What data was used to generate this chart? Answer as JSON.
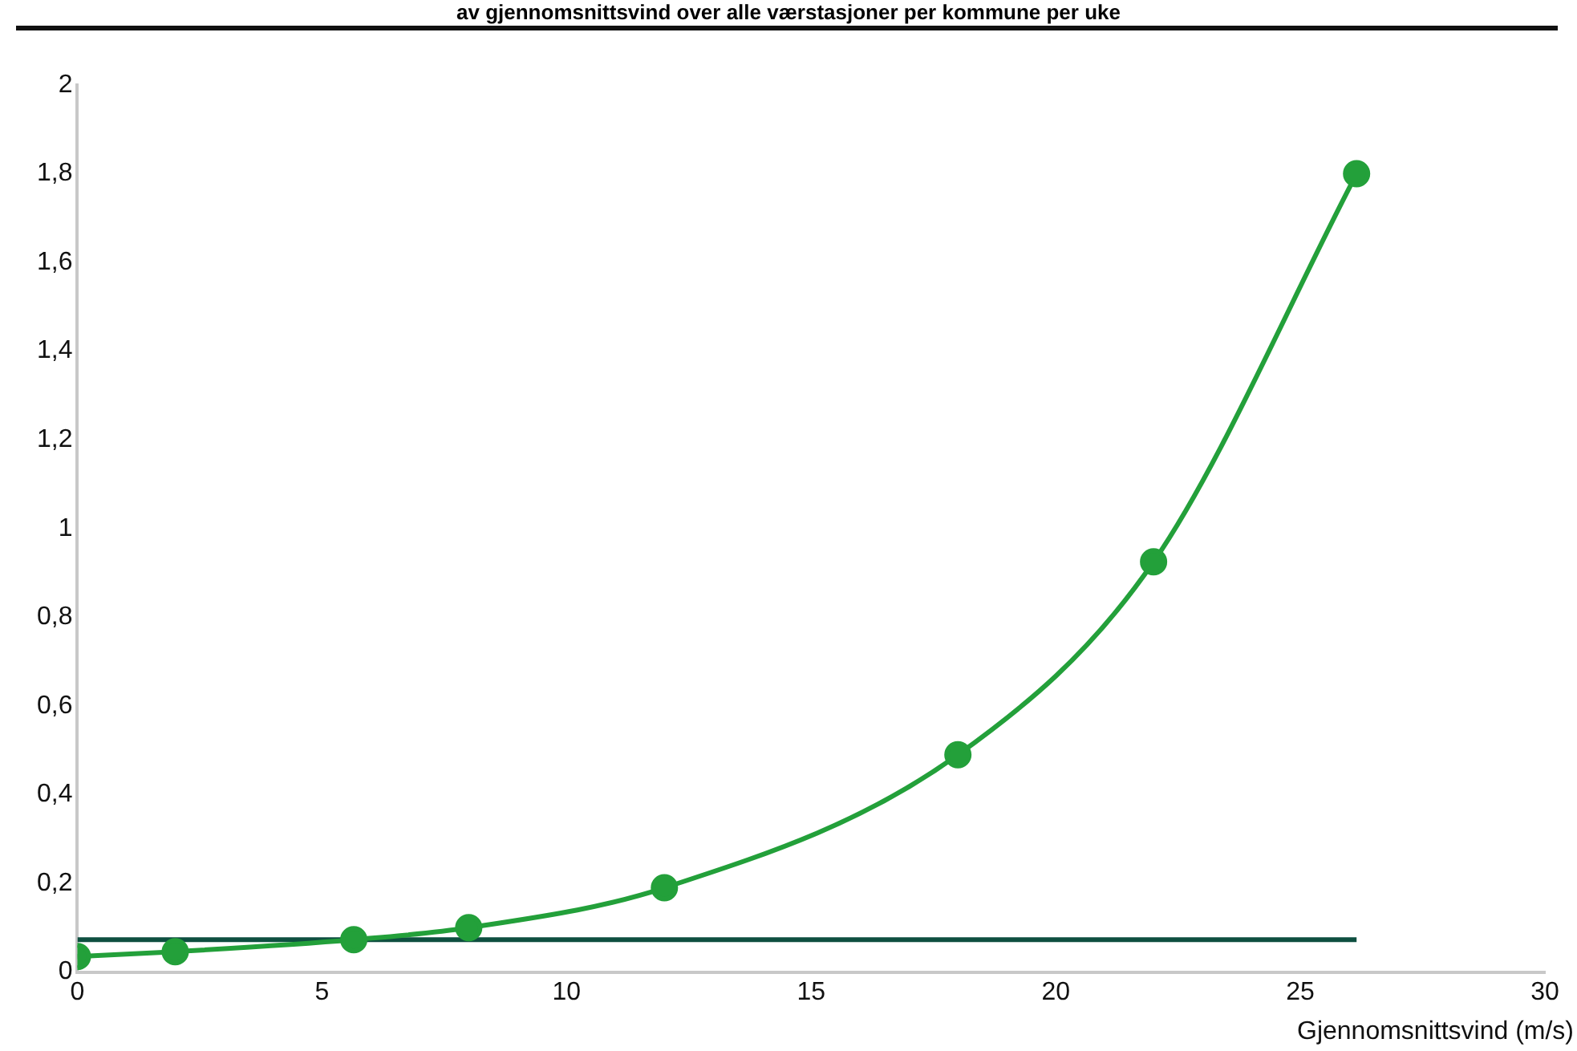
{
  "chart_data": {
    "type": "line",
    "title": "av gjennomsnittsvind over alle værstasjoner per kommune per uke",
    "xlabel": "Gjennomsnittsvind (m/s)",
    "series": [
      {
        "color": "#23a03a",
        "x": [
          0,
          2,
          5.65,
          8,
          12,
          18,
          22,
          26.15
        ],
        "values": [
          0.035,
          0.046,
          0.073,
          0.1,
          0.19,
          0.49,
          0.925,
          1.8
        ],
        "marker": "circle"
      },
      {
        "color": "#0e4f40",
        "x": [
          0,
          26.15
        ],
        "values": [
          0.073,
          0.073
        ],
        "marker": "none"
      }
    ],
    "xlim": [
      0,
      30
    ],
    "xticks": [
      0,
      5,
      10,
      15,
      20,
      25,
      30
    ],
    "ylim": [
      0,
      2
    ],
    "yticks": [
      0,
      {
        "value": 0.2,
        "label": "0,2"
      },
      {
        "value": 0.4,
        "label": "0,4"
      },
      {
        "value": 0.6,
        "label": "0,6"
      },
      {
        "value": 0.8,
        "label": "0,8"
      },
      1,
      {
        "value": 1.2,
        "label": "1,2"
      },
      {
        "value": 1.4,
        "label": "1,4"
      },
      {
        "value": 1.6,
        "label": "1,6"
      },
      {
        "value": 1.8,
        "label": "1,8"
      },
      2
    ],
    "grid": false,
    "legend": false
  }
}
